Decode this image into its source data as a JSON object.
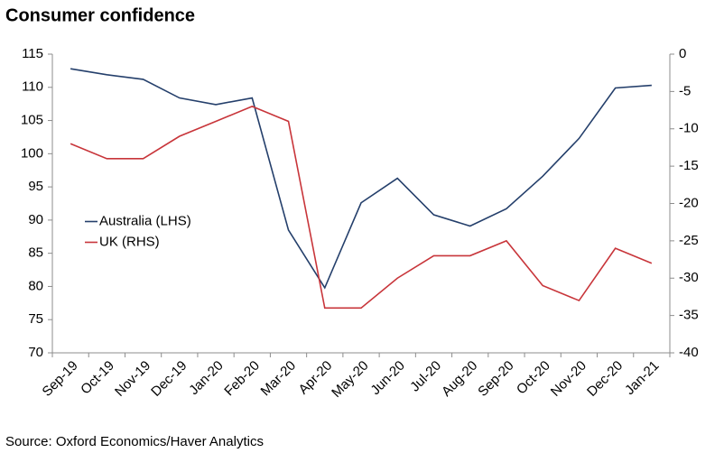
{
  "chart_data": {
    "type": "line",
    "title": "Consumer confidence",
    "source": "Source: Oxford Economics/Haver Analytics",
    "categories": [
      "Sep-19",
      "Oct-19",
      "Nov-19",
      "Dec-19",
      "Jan-20",
      "Feb-20",
      "Mar-20",
      "Apr-20",
      "May-20",
      "Jun-20",
      "Jul-20",
      "Aug-20",
      "Sep-20",
      "Oct-20",
      "Nov-20",
      "Dec-20",
      "Jan-21"
    ],
    "series": [
      {
        "name": "Australia (LHS)",
        "color": "#243f6b",
        "axis": "y",
        "values": [
          112.8,
          111.9,
          111.2,
          108.4,
          107.4,
          108.4,
          88.5,
          79.8,
          92.6,
          96.3,
          90.8,
          89.1,
          91.7,
          96.6,
          102.3,
          109.9,
          110.3
        ]
      },
      {
        "name": "UK (RHS)",
        "color": "#c8353a",
        "axis": "y2",
        "values": [
          -12,
          -14,
          -14,
          -11,
          -9,
          -7,
          -9,
          -34,
          -34,
          -30,
          -27,
          -27,
          -25,
          -31,
          -33,
          -26,
          -28
        ]
      }
    ],
    "ylim": [
      70,
      115
    ],
    "yticks": [
      70,
      75,
      80,
      85,
      90,
      95,
      100,
      105,
      110,
      115
    ],
    "y2lim": [
      -40,
      0
    ],
    "y2ticks": [
      -40,
      -35,
      -30,
      -25,
      -20,
      -15,
      -10,
      -5,
      0
    ],
    "grid": false,
    "legend": "center-left"
  }
}
